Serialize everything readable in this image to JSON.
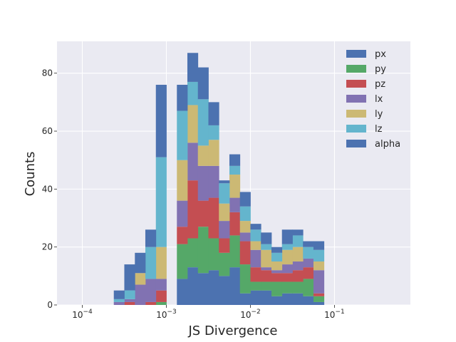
{
  "chart_data": {
    "type": "bar",
    "subtype": "stacked-histogram-step-filled",
    "title": "",
    "xlabel": "JS Divergence",
    "ylabel": "Counts",
    "xscale": "log",
    "xlim": [
      5e-05,
      0.8
    ],
    "ylim": [
      0,
      91
    ],
    "grid": true,
    "legend_position": "top-right",
    "x_ticks": [
      {
        "value": 0.0001,
        "base": "10",
        "exp": "−4"
      },
      {
        "value": 0.001,
        "base": "10",
        "exp": "−3"
      },
      {
        "value": 0.01,
        "base": "10",
        "exp": "−2"
      },
      {
        "value": 0.1,
        "base": "10",
        "exp": "−1"
      }
    ],
    "y_ticks": [
      0,
      20,
      40,
      60,
      80
    ],
    "bin_edges": [
      0.000178,
      0.000237,
      0.000316,
      0.000422,
      0.000562,
      0.00075,
      0.001,
      0.001334,
      0.001778,
      0.002371,
      0.003162,
      0.004217,
      0.005623,
      0.007499,
      0.01,
      0.013335,
      0.017783,
      0.023714,
      0.031623,
      0.04217,
      0.056234,
      0.074989,
      0.1,
      0.133352,
      0.177828,
      0.237137,
      0.316228,
      0.421697,
      0.562341
    ],
    "series": [
      {
        "name": "px",
        "color": "#4c72b0",
        "values": [
          0,
          0,
          0,
          0,
          0,
          0,
          0,
          9,
          13,
          11,
          12,
          10,
          13,
          4,
          5,
          5,
          3,
          4,
          4,
          3,
          1,
          0,
          0,
          0,
          0,
          0,
          0,
          0
        ]
      },
      {
        "name": "py",
        "color": "#55a868",
        "values": [
          0,
          0,
          0,
          0,
          0,
          1,
          0,
          12,
          10,
          16,
          11,
          8,
          11,
          10,
          3,
          3,
          5,
          4,
          4,
          6,
          2,
          0,
          0,
          0,
          0,
          0,
          0,
          0
        ]
      },
      {
        "name": "pz",
        "color": "#c44e52",
        "values": [
          0,
          0,
          1,
          0,
          1,
          4,
          0,
          6,
          20,
          9,
          14,
          5,
          8,
          8,
          5,
          4,
          3,
          3,
          4,
          4,
          1,
          0,
          0,
          0,
          0,
          0,
          0,
          0
        ]
      },
      {
        "name": "lx",
        "color": "#8172b2",
        "values": [
          0,
          1,
          1,
          7,
          8,
          4,
          0,
          9,
          13,
          12,
          11,
          6,
          5,
          3,
          6,
          1,
          1,
          3,
          3,
          3,
          8,
          0,
          0,
          0,
          0,
          0,
          0,
          0
        ]
      },
      {
        "name": "ly",
        "color": "#ccb974",
        "values": [
          0,
          0,
          0,
          4,
          0,
          11,
          0,
          14,
          13,
          7,
          9,
          6,
          8,
          4,
          3,
          6,
          3,
          5,
          5,
          0,
          3,
          0,
          0,
          0,
          0,
          0,
          0,
          0
        ]
      },
      {
        "name": "lz",
        "color": "#64b5cd",
        "values": [
          0,
          1,
          3,
          0,
          11,
          31,
          0,
          17,
          8,
          16,
          5,
          7,
          3,
          5,
          4,
          2,
          3,
          2,
          4,
          4,
          4,
          0,
          0,
          0,
          0,
          0,
          0,
          0
        ]
      },
      {
        "name": "alpha",
        "color": "#4c72b0",
        "values": [
          0,
          3,
          9,
          7,
          6,
          25,
          0,
          9,
          10,
          11,
          8,
          1,
          4,
          5,
          2,
          4,
          2,
          5,
          2,
          2,
          3,
          0,
          0,
          0,
          0,
          0,
          0,
          0
        ]
      }
    ]
  }
}
